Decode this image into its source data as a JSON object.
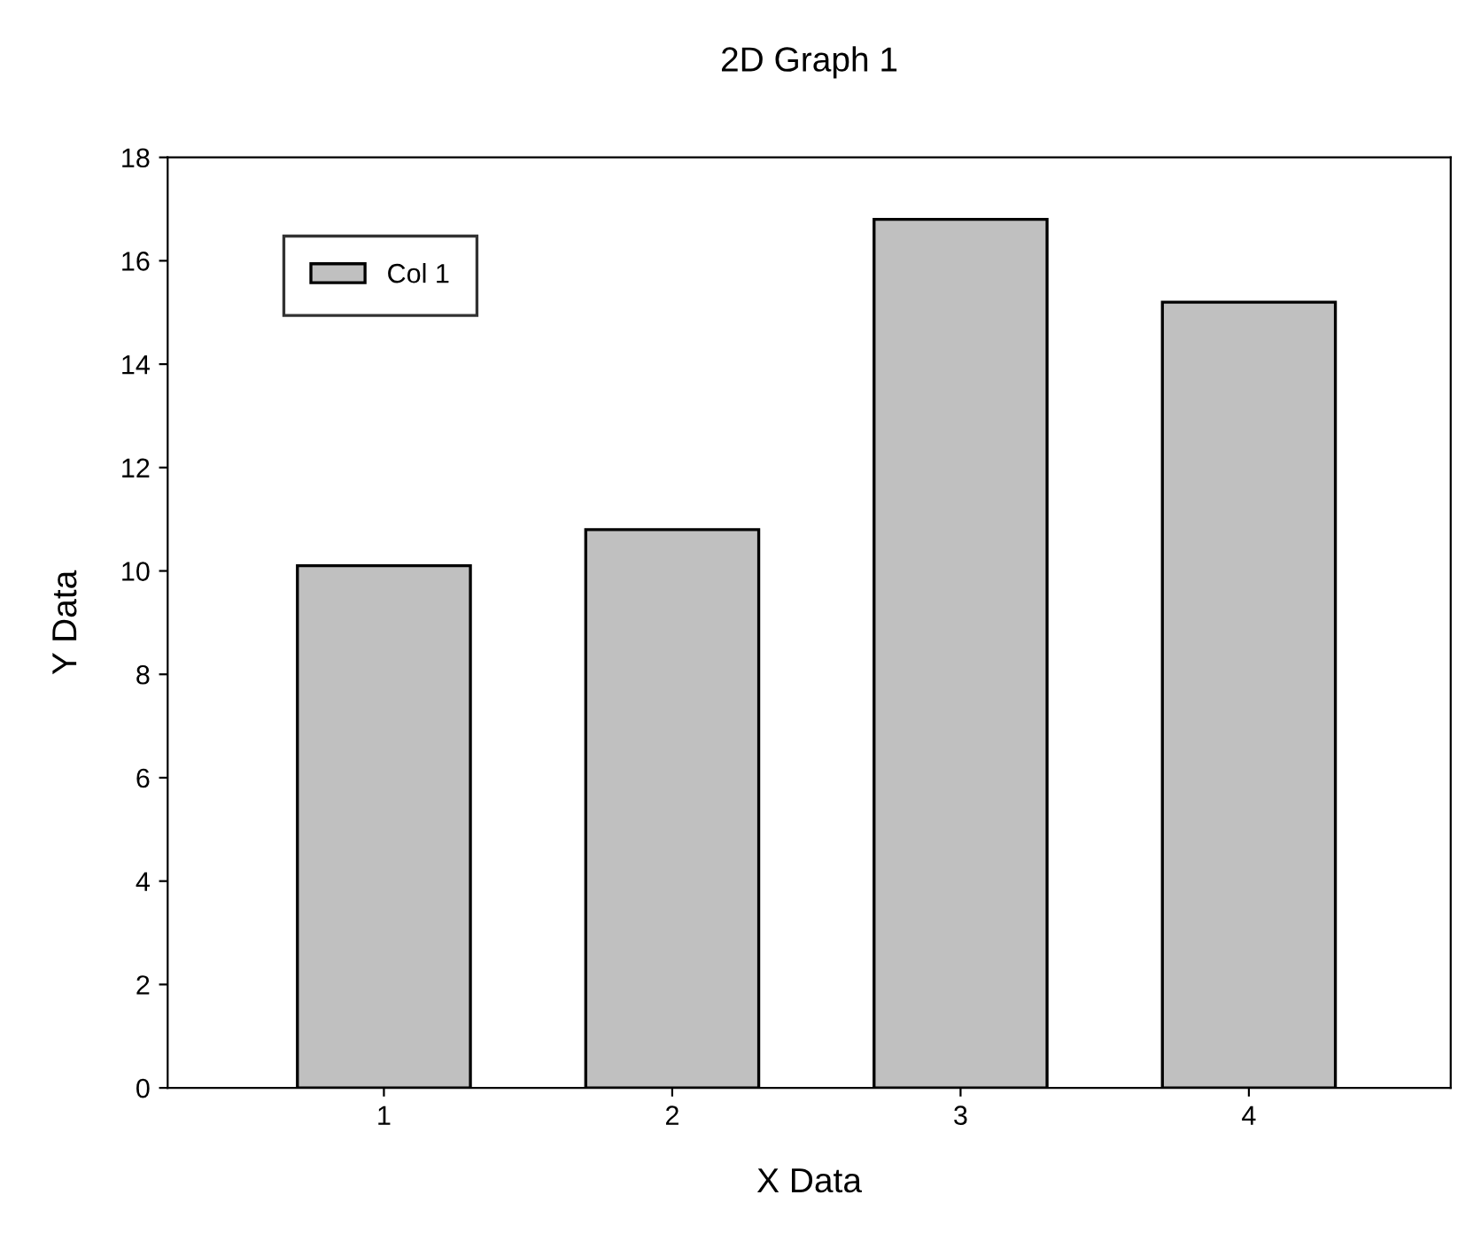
{
  "chart_data": {
    "type": "bar",
    "title": "2D Graph 1",
    "xlabel": "X Data",
    "ylabel": "Y Data",
    "x": [
      1,
      2,
      3,
      4
    ],
    "series": [
      {
        "name": "Col 1",
        "color": "#c0c0c0",
        "values": [
          10.1,
          10.8,
          16.8,
          15.2
        ]
      }
    ],
    "xlim": [
      0.25,
      4.7
    ],
    "xticks": [
      1,
      2,
      3,
      4
    ],
    "ylim": [
      0,
      18
    ],
    "yticks": [
      0,
      2,
      4,
      6,
      8,
      10,
      12,
      14,
      16,
      18
    ],
    "grid": false,
    "legend": "top left"
  }
}
